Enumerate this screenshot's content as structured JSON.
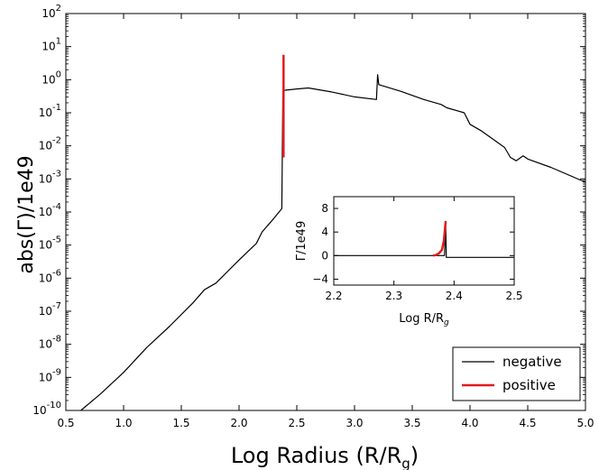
{
  "chart_data": [
    {
      "type": "line",
      "title": "",
      "xlabel": "Log Radius (R/R",
      "xlabel_sub": "g",
      "xlabel_close": ")",
      "ylabel": "abs(Γ)/1e49",
      "xlim": [
        0.5,
        5.0
      ],
      "ylim_log10": [
        -10,
        2
      ],
      "yscale": "log",
      "xticks": [
        "0.5",
        "1.0",
        "1.5",
        "2.0",
        "2.5",
        "3.0",
        "3.5",
        "4.0",
        "4.5",
        "5.0"
      ],
      "yticks": [
        {
          "base": "10",
          "exp": "-10",
          "v": -10
        },
        {
          "base": "10",
          "exp": "-9",
          "v": -9
        },
        {
          "base": "10",
          "exp": "-8",
          "v": -8
        },
        {
          "base": "10",
          "exp": "-7",
          "v": -7
        },
        {
          "base": "10",
          "exp": "-6",
          "v": -6
        },
        {
          "base": "10",
          "exp": "-5",
          "v": -5
        },
        {
          "base": "10",
          "exp": "-4",
          "v": -4
        },
        {
          "base": "10",
          "exp": "-3",
          "v": -3
        },
        {
          "base": "10",
          "exp": "-2",
          "v": -2
        },
        {
          "base": "10",
          "exp": "-1",
          "v": -1
        },
        {
          "base": "10",
          "exp": "0",
          "v": 0
        },
        {
          "base": "10",
          "exp": "1",
          "v": 1
        },
        {
          "base": "10",
          "exp": "2",
          "v": 2
        }
      ],
      "legend": {
        "placement": "lower-right",
        "entries": [
          "negative",
          "positive"
        ]
      },
      "series": [
        {
          "name": "negative",
          "color": "#000000",
          "x": [
            0.63,
            0.8,
            1.0,
            1.2,
            1.4,
            1.6,
            1.7,
            1.8,
            2.0,
            2.15,
            2.2,
            2.3,
            2.37,
            2.38,
            2.39,
            2.5,
            2.6,
            2.8,
            3.0,
            3.19,
            3.2,
            3.21,
            3.4,
            3.6,
            3.75,
            3.8,
            3.95,
            4.0,
            4.1,
            4.3,
            4.35,
            4.4,
            4.46,
            4.5,
            4.7,
            4.9,
            5.0
          ],
          "log10_y": [
            -10.0,
            -9.5,
            -8.85,
            -8.1,
            -7.45,
            -6.75,
            -6.35,
            -6.15,
            -5.45,
            -4.95,
            -4.6,
            -4.2,
            -3.9,
            -0.35,
            -0.32,
            -0.28,
            -0.25,
            -0.37,
            -0.52,
            -0.6,
            0.15,
            -0.15,
            -0.35,
            -0.6,
            -0.75,
            -0.85,
            -1.0,
            -1.35,
            -1.55,
            -2.05,
            -2.35,
            -2.45,
            -2.3,
            -2.4,
            -2.65,
            -2.95,
            -3.1
          ]
        },
        {
          "name": "positive",
          "color": "#e31a1c",
          "x": [
            2.385,
            2.385
          ],
          "log10_y": [
            -2.35,
            0.75
          ]
        }
      ]
    },
    {
      "type": "line",
      "title": "",
      "xlabel": "Log R/R",
      "xlabel_sub": "g",
      "ylabel": "Γ/1e49",
      "xlim": [
        2.2,
        2.5
      ],
      "ylim": [
        -5,
        10
      ],
      "xticks": [
        "2.2",
        "2.3",
        "2.4",
        "2.5"
      ],
      "yticks": [
        "8",
        "4",
        "0",
        "−4"
      ],
      "series": [
        {
          "name": "negative",
          "color": "#000000",
          "x": [
            2.2,
            2.37,
            2.384,
            2.386,
            2.387,
            2.5
          ],
          "y": [
            0,
            0,
            0,
            5.8,
            -0.3,
            -0.3
          ]
        },
        {
          "name": "positive",
          "color": "#e31a1c",
          "x": [
            2.365,
            2.37,
            2.375,
            2.38,
            2.383,
            2.385,
            2.386
          ],
          "y": [
            0.0,
            0.1,
            0.4,
            1.0,
            2.5,
            4.5,
            5.8
          ]
        }
      ]
    }
  ]
}
